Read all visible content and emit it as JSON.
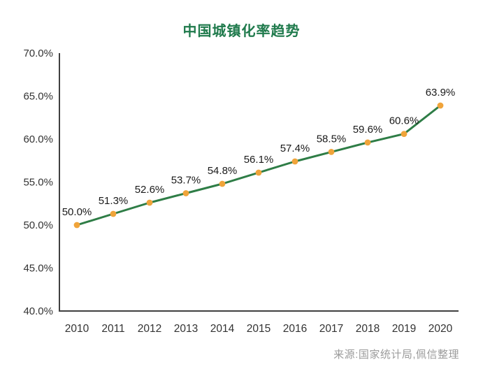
{
  "page": {
    "background": "#ffffff"
  },
  "chart_data": {
    "type": "line",
    "title": "中国城镇化率趋势",
    "title_color": "#1f7a4c",
    "categories": [
      "2010",
      "2011",
      "2012",
      "2013",
      "2014",
      "2015",
      "2016",
      "2017",
      "2018",
      "2019",
      "2020"
    ],
    "series": [
      {
        "name": "城镇化率",
        "values": [
          50.0,
          51.3,
          52.6,
          53.7,
          54.8,
          56.1,
          57.4,
          58.5,
          59.6,
          60.6,
          63.9
        ],
        "data_labels": [
          "50.0%",
          "51.3%",
          "52.6%",
          "53.7%",
          "54.8%",
          "56.1%",
          "57.4%",
          "58.5%",
          "59.6%",
          "60.6%",
          "63.9%"
        ]
      }
    ],
    "xlabel": "",
    "ylabel": "",
    "ylim": [
      40,
      70
    ],
    "y_tick_step": 5,
    "y_tick_labels": [
      "70.0%",
      "65.0%",
      "60.0%",
      "55.0%",
      "50.0%",
      "45.0%",
      "40.0%"
    ],
    "grid": false,
    "legend": false,
    "line_color": "#2e7d46",
    "marker_color": "#f0a43a",
    "axis_color": "#404040",
    "source_note": "来源:国家统计局,佩信整理"
  }
}
